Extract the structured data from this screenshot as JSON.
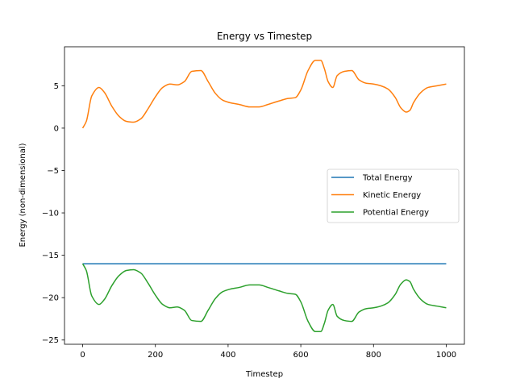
{
  "chart_data": {
    "type": "line",
    "title": "Energy vs Timestep",
    "xlabel": "Timestep",
    "ylabel": "Energy (non-dimensional)",
    "xlim": [
      -50,
      1050
    ],
    "ylim": [
      -25.5,
      9.6
    ],
    "xticks": [
      0,
      200,
      400,
      600,
      800,
      1000
    ],
    "yticks": [
      -25,
      -20,
      -15,
      -10,
      -5,
      0,
      5
    ],
    "grid": false,
    "legend_position": "center-right",
    "series": [
      {
        "name": "Total Energy",
        "color": "#1f77b4",
        "x": [
          0,
          1000
        ],
        "y": [
          -16,
          -16
        ]
      },
      {
        "name": "Kinetic Energy",
        "color": "#ff7f0e",
        "x": [
          0,
          10,
          25,
          45,
          60,
          80,
          100,
          120,
          140,
          160,
          180,
          200,
          220,
          240,
          260,
          280,
          300,
          325,
          345,
          365,
          385,
          405,
          430,
          460,
          485,
          510,
          540,
          565,
          585,
          600,
          620,
          640,
          655,
          665,
          675,
          688,
          700,
          720,
          740,
          760,
          780,
          800,
          820,
          840,
          860,
          875,
          890,
          900,
          910,
          930,
          950,
          975,
          1000
        ],
        "y": [
          0.0,
          0.8,
          3.8,
          4.8,
          4.2,
          2.6,
          1.4,
          0.8,
          0.7,
          1.1,
          2.3,
          3.7,
          4.8,
          5.2,
          5.1,
          5.5,
          6.7,
          6.8,
          5.5,
          4.1,
          3.3,
          3.0,
          2.8,
          2.5,
          2.5,
          2.8,
          3.2,
          3.5,
          3.6,
          4.5,
          6.8,
          8.0,
          8.0,
          7.0,
          5.5,
          4.8,
          6.2,
          6.7,
          6.8,
          5.7,
          5.3,
          5.2,
          5.0,
          4.6,
          3.6,
          2.4,
          1.9,
          2.1,
          3.0,
          4.2,
          4.8,
          5.0,
          5.2
        ]
      },
      {
        "name": "Potential Energy",
        "color": "#2ca02c",
        "x": [
          0,
          10,
          25,
          45,
          60,
          80,
          100,
          120,
          140,
          160,
          180,
          200,
          220,
          240,
          260,
          280,
          300,
          325,
          345,
          365,
          385,
          405,
          430,
          460,
          485,
          510,
          540,
          565,
          585,
          600,
          620,
          640,
          655,
          665,
          675,
          688,
          700,
          720,
          740,
          760,
          780,
          800,
          820,
          840,
          860,
          875,
          890,
          900,
          910,
          930,
          950,
          975,
          1000
        ],
        "y": [
          -16.0,
          -16.8,
          -19.8,
          -20.8,
          -20.2,
          -18.6,
          -17.4,
          -16.8,
          -16.7,
          -17.1,
          -18.3,
          -19.7,
          -20.8,
          -21.2,
          -21.1,
          -21.5,
          -22.7,
          -22.8,
          -21.5,
          -20.1,
          -19.3,
          -19.0,
          -18.8,
          -18.5,
          -18.5,
          -18.8,
          -19.2,
          -19.5,
          -19.6,
          -20.5,
          -22.8,
          -24.0,
          -24.0,
          -23.0,
          -21.5,
          -20.8,
          -22.2,
          -22.7,
          -22.8,
          -21.7,
          -21.3,
          -21.2,
          -21.0,
          -20.6,
          -19.6,
          -18.4,
          -17.9,
          -18.1,
          -19.0,
          -20.2,
          -20.8,
          -21.0,
          -21.2
        ]
      }
    ]
  }
}
